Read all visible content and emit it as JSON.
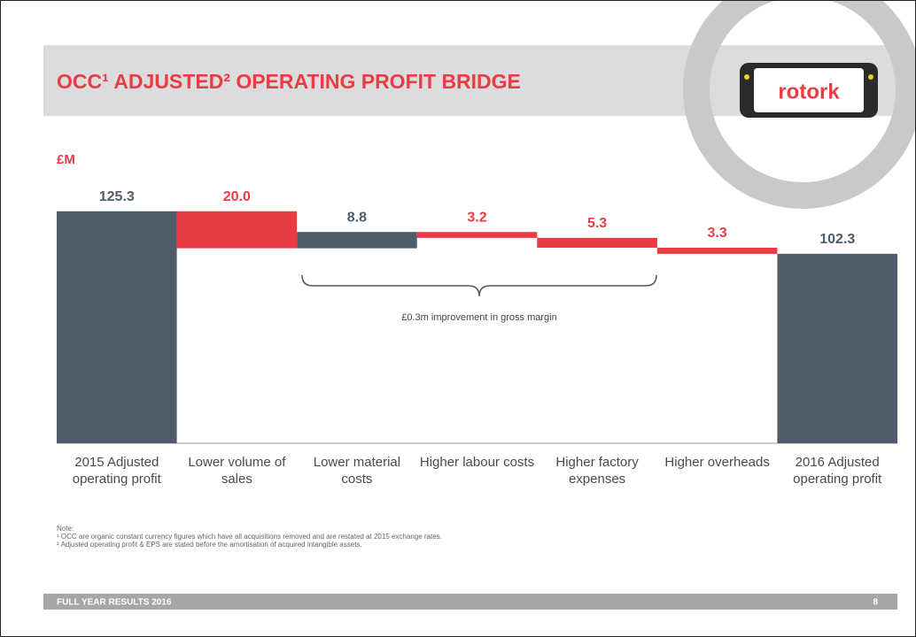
{
  "chart_data": {
    "type": "waterfall",
    "title": "OCC¹ ADJUSTED² OPERATING PROFIT BRIDGE",
    "y_label": "£M",
    "categories": [
      "2015 Adjusted operating profit",
      "Lower volume of sales",
      "Lower material costs",
      "Higher labour costs",
      "Higher factory expenses",
      "Higher overheads",
      "2016 Adjusted operating profit"
    ],
    "measure": [
      "absolute",
      "relative",
      "relative",
      "relative",
      "relative",
      "relative",
      "absolute"
    ],
    "values": [
      125.3,
      -20.0,
      8.8,
      -3.2,
      -5.3,
      -3.3,
      102.3
    ],
    "value_labels": [
      "125.3",
      "20.0",
      "8.8",
      "3.2",
      "5.3",
      "3.3",
      "102.3"
    ],
    "total_color": "#4f5c69",
    "increase_color": "#4f5c69",
    "decrease_color": "#e93c43",
    "ylim": [
      0,
      140
    ],
    "annotation": "£0.3m improvement in gross margin"
  },
  "logo": "rotork",
  "notes": [
    "Note:",
    "¹ OCC are organic constant currency figures which have all acquisitions removed and are restated at 2015 exchange rates.",
    "² Adjusted operating profit & EPS are stated before the amortisation of acquired intangible assets."
  ],
  "footer": {
    "text": "FULL YEAR RESULTS 2016",
    "page": "8"
  }
}
